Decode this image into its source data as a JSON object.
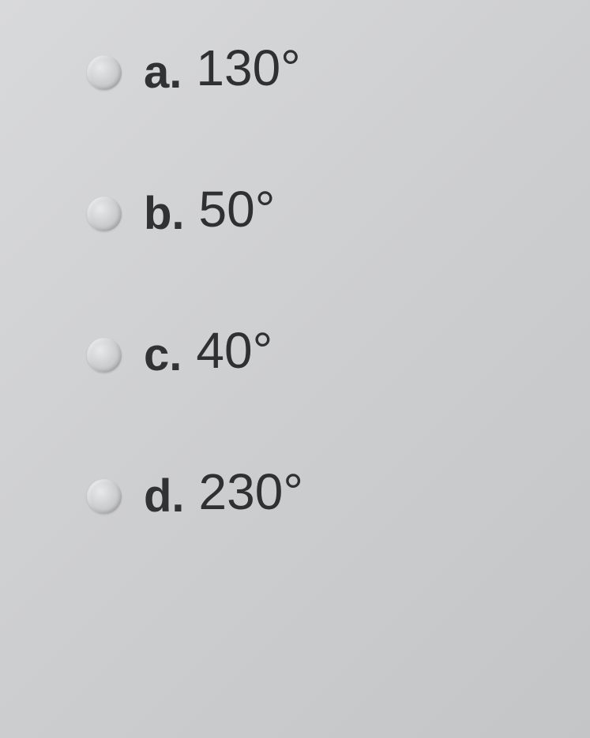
{
  "options": [
    {
      "letter": "a.",
      "value": "130°"
    },
    {
      "letter": "b.",
      "value": "50°"
    },
    {
      "letter": "c.",
      "value": "40°"
    },
    {
      "letter": "d.",
      "value": "230°"
    }
  ],
  "colors": {
    "background_start": "#d8d9db",
    "background_end": "#c3c5c7",
    "text": "#313234",
    "radio_light": "#e8e9ea",
    "radio_dark": "#b5b7b9"
  },
  "typography": {
    "letter_fontsize": 58,
    "value_fontsize": 64,
    "font_family": "Arial"
  }
}
